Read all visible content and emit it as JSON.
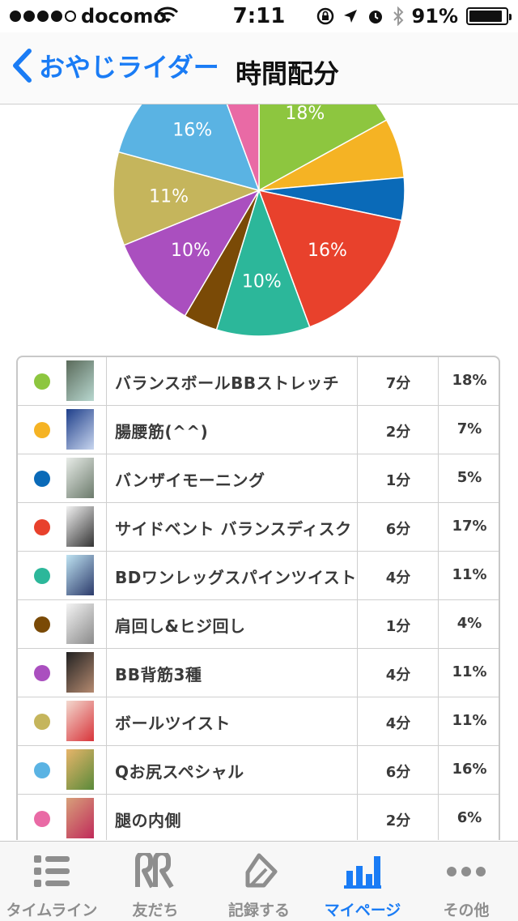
{
  "status": {
    "carrier": "docomo",
    "time": "7:11",
    "battery": "91%",
    "battery_level": 0.91
  },
  "nav": {
    "back_label": "おやじライダー",
    "title": "時間配分"
  },
  "chart_data": {
    "type": "pie",
    "title": "",
    "start_angle_deg": 0,
    "slices": [
      {
        "label": "バランスボールBBストレッチ",
        "value": 18,
        "color": "#8dc63f",
        "text": "18%"
      },
      {
        "label": "腸腰筋(^^)",
        "value": 7,
        "color": "#f5b324",
        "text": ""
      },
      {
        "label": "バンザイモーニング",
        "value": 5,
        "color": "#0a6ab8",
        "text": ""
      },
      {
        "label": "サイドベント バランスディスク",
        "value": 17,
        "color": "#e8412c",
        "text": "16%"
      },
      {
        "label": "BDワンレッグスパインツイスト",
        "value": 11,
        "color": "#2cb79a",
        "text": "10%"
      },
      {
        "label": "肩回し&ヒジ回し",
        "value": 4,
        "color": "#7a4a06",
        "text": ""
      },
      {
        "label": "BB背筋3種",
        "value": 11,
        "color": "#aa4fbf",
        "text": "10%"
      },
      {
        "label": "ボールツイスト",
        "value": 11,
        "color": "#c5b55c",
        "text": "11%"
      },
      {
        "label": "Qお尻スペシャル",
        "value": 16,
        "color": "#5ab3e3",
        "text": "16%"
      },
      {
        "label": "腿の内側",
        "value": 6,
        "color": "#e96aa5",
        "text": ""
      }
    ]
  },
  "rows": [
    {
      "name": "バランスボールBBストレッチ",
      "minutes": "7分",
      "percent": "18%",
      "color": "#8dc63f",
      "thumb": [
        "#5a6a5a",
        "#b8d8d0"
      ]
    },
    {
      "name": "腸腰筋(^^)",
      "minutes": "2分",
      "percent": "7%",
      "color": "#f5b324",
      "thumb": [
        "#1f3f8a",
        "#c8d6ef"
      ]
    },
    {
      "name": "バンザイモーニング",
      "minutes": "1分",
      "percent": "5%",
      "color": "#0a6ab8",
      "thumb": [
        "#e8ece8",
        "#6b7a6b"
      ]
    },
    {
      "name": "サイドベント バランスディスク",
      "minutes": "6分",
      "percent": "17%",
      "color": "#e8412c",
      "thumb": [
        "#f2f2f2",
        "#333333"
      ]
    },
    {
      "name": "BDワンレッグスパインツイスト",
      "minutes": "4分",
      "percent": "11%",
      "color": "#2cb79a",
      "thumb": [
        "#bfe3f2",
        "#2b3a6a"
      ]
    },
    {
      "name": "肩回し&ヒジ回し",
      "minutes": "1分",
      "percent": "4%",
      "color": "#7a4a06",
      "thumb": [
        "#f4f4f4",
        "#8a8a8a"
      ]
    },
    {
      "name": "BB背筋3種",
      "minutes": "4分",
      "percent": "11%",
      "color": "#aa4fbf",
      "thumb": [
        "#222222",
        "#b58a70"
      ]
    },
    {
      "name": "ボールツイスト",
      "minutes": "4分",
      "percent": "11%",
      "color": "#c5b55c",
      "thumb": [
        "#f3d9cf",
        "#d8343a"
      ]
    },
    {
      "name": "Qお尻スペシャル",
      "minutes": "6分",
      "percent": "16%",
      "color": "#5ab3e3",
      "thumb": [
        "#e7b56a",
        "#5a8a3a"
      ]
    },
    {
      "name": "腿の内側",
      "minutes": "2分",
      "percent": "6%",
      "color": "#e96aa5",
      "thumb": [
        "#d7a07a",
        "#c02a5a"
      ]
    }
  ],
  "tabs": [
    {
      "label": "タイムライン",
      "icon": "list-icon",
      "active": false
    },
    {
      "label": "友だち",
      "icon": "friends-icon",
      "active": false
    },
    {
      "label": "記録する",
      "icon": "record-icon",
      "active": false
    },
    {
      "label": "マイページ",
      "icon": "chart-icon",
      "active": true
    },
    {
      "label": "その他",
      "icon": "more-icon",
      "active": false
    }
  ]
}
